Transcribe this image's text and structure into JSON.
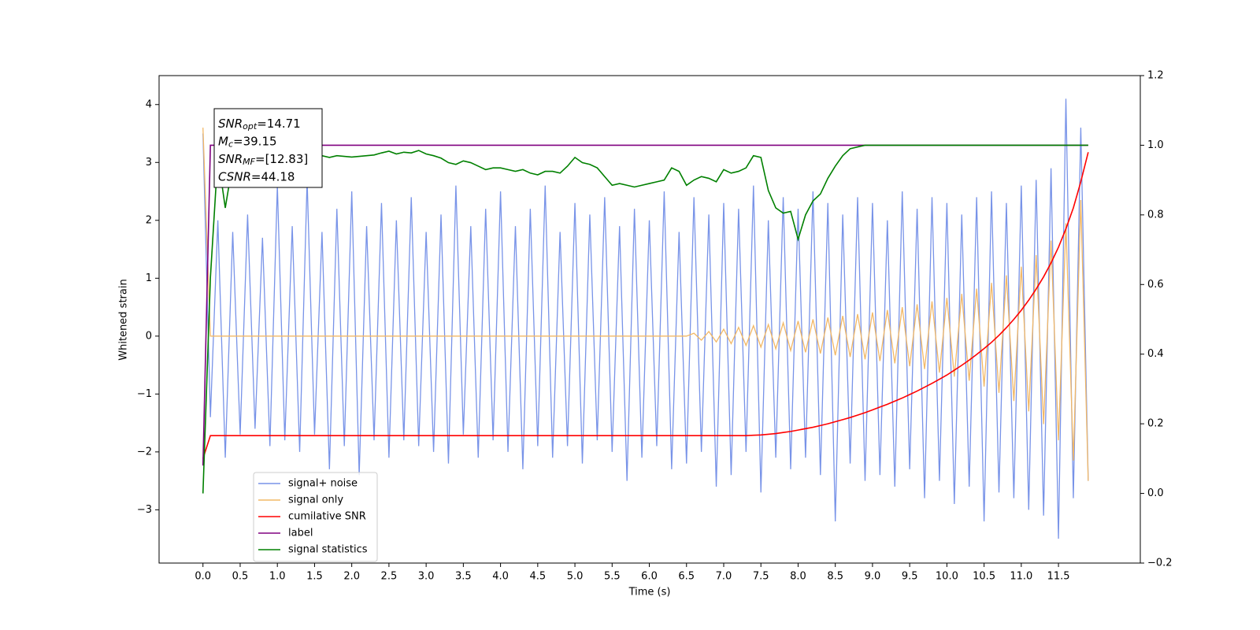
{
  "chart_data": {
    "type": "line",
    "x_label": "Time (s)",
    "y_label": "Whitened strain",
    "x": [
      0,
      0.1,
      0.2,
      0.3,
      0.4,
      0.5,
      0.6,
      0.7,
      0.8,
      0.9,
      1,
      1.1,
      1.2,
      1.3,
      1.4,
      1.5,
      1.6,
      1.7,
      1.8,
      1.9,
      2,
      2.1,
      2.2,
      2.3,
      2.4,
      2.5,
      2.6,
      2.7,
      2.8,
      2.9,
      3,
      3.1,
      3.2,
      3.3,
      3.4,
      3.5,
      3.6,
      3.7,
      3.8,
      3.9,
      4,
      4.1,
      4.2,
      4.3,
      4.4,
      4.5,
      4.6,
      4.7,
      4.8,
      4.9,
      5,
      5.1,
      5.2,
      5.3,
      5.4,
      5.5,
      5.6,
      5.7,
      5.8,
      5.9,
      6,
      6.1,
      6.2,
      6.3,
      6.4,
      6.5,
      6.6,
      6.7,
      6.8,
      6.9,
      7,
      7.1,
      7.2,
      7.3,
      7.4,
      7.5,
      7.6,
      7.7,
      7.8,
      7.9,
      8,
      8.1,
      8.2,
      8.3,
      8.4,
      8.5,
      8.6,
      8.7,
      8.8,
      8.9,
      9,
      9.1,
      9.2,
      9.3,
      9.4,
      9.5,
      9.6,
      9.7,
      9.8,
      9.9,
      10,
      10.1,
      10.2,
      10.3,
      10.4,
      10.5,
      10.6,
      10.7,
      10.8,
      10.9,
      11,
      11.1,
      11.2,
      11.3,
      11.4,
      11.5,
      11.6,
      11.7,
      11.8,
      11.9
    ],
    "series": [
      {
        "name": "signal+ noise",
        "color": "#7893e8",
        "values": [
          3.5,
          -1.4,
          2.0,
          -2.1,
          1.8,
          -1.7,
          2.1,
          -1.6,
          1.7,
          -1.9,
          2.6,
          -1.8,
          1.9,
          -2.0,
          2.7,
          -1.7,
          1.8,
          -2.3,
          2.2,
          -1.9,
          2.5,
          -2.4,
          1.9,
          -1.8,
          2.3,
          -2.1,
          2.0,
          -1.8,
          2.4,
          -1.9,
          1.8,
          -2.0,
          2.1,
          -2.2,
          2.6,
          -1.7,
          1.9,
          -2.1,
          2.2,
          -1.8,
          2.5,
          -2.0,
          1.9,
          -2.3,
          2.2,
          -1.9,
          2.6,
          -2.1,
          1.8,
          -1.9,
          2.3,
          -2.2,
          2.1,
          -1.8,
          2.4,
          -2.0,
          1.9,
          -2.5,
          2.2,
          -2.1,
          2.0,
          -1.9,
          2.5,
          -2.3,
          1.8,
          -2.2,
          2.4,
          -2.0,
          2.1,
          -2.6,
          2.3,
          -2.4,
          2.2,
          -2.0,
          2.6,
          -2.7,
          2.0,
          -2.1,
          2.4,
          -2.3,
          2.2,
          -2.1,
          2.5,
          -2.4,
          2.3,
          -3.2,
          2.1,
          -2.2,
          2.4,
          -2.5,
          2.3,
          -2.4,
          2.0,
          -2.6,
          2.5,
          -2.3,
          2.2,
          -2.8,
          2.4,
          -2.5,
          2.3,
          -2.9,
          2.1,
          -2.6,
          2.4,
          -3.2,
          2.5,
          -2.7,
          2.3,
          -2.8,
          2.6,
          -3.0,
          2.7,
          -3.1,
          2.9,
          -3.5,
          4.1,
          -2.8,
          3.6,
          -2.5
        ]
      },
      {
        "name": "signal only",
        "color": "#f2b866",
        "values": [
          3.6,
          0,
          0,
          0,
          0,
          0,
          0,
          0,
          0,
          0,
          0,
          0,
          0,
          0,
          0,
          0,
          0,
          0,
          0,
          0,
          0,
          0,
          0,
          0,
          0,
          0,
          0,
          0,
          0,
          0,
          0,
          0,
          0,
          0,
          0,
          0,
          0,
          0,
          0,
          0,
          0,
          0,
          0,
          0,
          0,
          0,
          0,
          0,
          0,
          0,
          0,
          0,
          0,
          0,
          0,
          0,
          0,
          0,
          0,
          0,
          0,
          0,
          0,
          0,
          0,
          0,
          0.05,
          -0.07,
          0.08,
          -0.1,
          0.12,
          -0.13,
          0.15,
          -0.16,
          0.18,
          -0.19,
          0.2,
          -0.22,
          0.23,
          -0.25,
          0.26,
          -0.28,
          0.29,
          -0.3,
          0.32,
          -0.33,
          0.35,
          -0.36,
          0.38,
          -0.4,
          0.41,
          -0.43,
          0.45,
          -0.47,
          0.5,
          -0.52,
          0.55,
          -0.57,
          0.6,
          -0.63,
          0.66,
          -0.7,
          0.73,
          -0.77,
          0.82,
          -0.87,
          0.92,
          -0.98,
          1.05,
          -1.12,
          1.2,
          -1.3,
          1.4,
          -1.52,
          1.65,
          -1.8,
          1.95,
          -2.15,
          2.35,
          -2.5
        ]
      },
      {
        "name": "cumilative SNR",
        "color": "#ff0000",
        "axis": "y2",
        "values": [
          0.1,
          0.166,
          0.166,
          0.166,
          0.166,
          0.166,
          0.166,
          0.166,
          0.166,
          0.166,
          0.166,
          0.166,
          0.166,
          0.166,
          0.166,
          0.166,
          0.166,
          0.166,
          0.166,
          0.166,
          0.166,
          0.166,
          0.166,
          0.166,
          0.166,
          0.166,
          0.166,
          0.166,
          0.166,
          0.166,
          0.166,
          0.166,
          0.166,
          0.166,
          0.166,
          0.166,
          0.166,
          0.166,
          0.166,
          0.166,
          0.166,
          0.166,
          0.166,
          0.166,
          0.166,
          0.166,
          0.166,
          0.166,
          0.166,
          0.166,
          0.166,
          0.166,
          0.166,
          0.166,
          0.166,
          0.166,
          0.166,
          0.166,
          0.166,
          0.166,
          0.166,
          0.166,
          0.166,
          0.166,
          0.166,
          0.166,
          0.166,
          0.166,
          0.166,
          0.166,
          0.166,
          0.166,
          0.166,
          0.166,
          0.167,
          0.168,
          0.17,
          0.172,
          0.175,
          0.178,
          0.182,
          0.186,
          0.19,
          0.195,
          0.2,
          0.206,
          0.212,
          0.218,
          0.225,
          0.232,
          0.24,
          0.248,
          0.256,
          0.265,
          0.274,
          0.284,
          0.294,
          0.305,
          0.316,
          0.328,
          0.34,
          0.354,
          0.368,
          0.383,
          0.399,
          0.416,
          0.434,
          0.454,
          0.476,
          0.5,
          0.526,
          0.555,
          0.587,
          0.622,
          0.662,
          0.707,
          0.76,
          0.82,
          0.895,
          0.98
        ]
      },
      {
        "name": "label",
        "color": "#800080",
        "axis": "y2",
        "values": [
          0.08,
          1,
          1,
          1,
          1,
          1,
          1,
          1,
          1,
          1,
          1,
          1,
          1,
          1,
          1,
          1,
          1,
          1,
          1,
          1,
          1,
          1,
          1,
          1,
          1,
          1,
          1,
          1,
          1,
          1,
          1,
          1,
          1,
          1,
          1,
          1,
          1,
          1,
          1,
          1,
          1,
          1,
          1,
          1,
          1,
          1,
          1,
          1,
          1,
          1,
          1,
          1,
          1,
          1,
          1,
          1,
          1,
          1,
          1,
          1,
          1,
          1,
          1,
          1,
          1,
          1,
          1,
          1,
          1,
          1,
          1,
          1,
          1,
          1,
          1,
          1,
          1,
          1,
          1,
          1,
          1,
          1,
          1,
          1,
          1,
          1,
          1,
          1,
          1,
          1,
          1,
          1,
          1,
          1,
          1,
          1,
          1,
          1,
          1,
          1,
          1,
          1,
          1,
          1,
          1,
          1,
          1,
          1,
          1,
          1,
          1,
          1,
          1,
          1,
          1,
          1,
          1,
          1,
          1,
          1
        ]
      },
      {
        "name": "signal statistics",
        "color": "#008000",
        "axis": "y2",
        "values": [
          0.0,
          0.62,
          0.97,
          0.82,
          0.95,
          0.94,
          0.96,
          0.95,
          0.93,
          0.94,
          0.95,
          0.96,
          0.95,
          0.94,
          0.95,
          0.96,
          0.97,
          0.965,
          0.97,
          0.968,
          0.966,
          0.968,
          0.97,
          0.972,
          0.978,
          0.983,
          0.975,
          0.98,
          0.978,
          0.985,
          0.975,
          0.97,
          0.963,
          0.95,
          0.945,
          0.955,
          0.95,
          0.94,
          0.93,
          0.935,
          0.935,
          0.93,
          0.925,
          0.93,
          0.92,
          0.915,
          0.925,
          0.925,
          0.92,
          0.94,
          0.965,
          0.95,
          0.945,
          0.935,
          0.91,
          0.885,
          0.89,
          0.885,
          0.88,
          0.885,
          0.89,
          0.895,
          0.9,
          0.935,
          0.925,
          0.885,
          0.9,
          0.91,
          0.905,
          0.895,
          0.93,
          0.92,
          0.925,
          0.935,
          0.97,
          0.965,
          0.87,
          0.82,
          0.805,
          0.81,
          0.73,
          0.8,
          0.84,
          0.86,
          0.905,
          0.94,
          0.97,
          0.99,
          0.995,
          1.0,
          1,
          1,
          1,
          1,
          1,
          1,
          1,
          1,
          1,
          1,
          1,
          1,
          1,
          1,
          1,
          1,
          1,
          1,
          1,
          1,
          1,
          1,
          1,
          1,
          1,
          1,
          1,
          1,
          1,
          1
        ]
      }
    ],
    "xlim": [
      -0.59,
      12.6
    ],
    "xticks": [
      {
        "value": 0,
        "label": "0.0"
      },
      0.5,
      {
        "value": 1,
        "label": "1.0"
      },
      1.5,
      {
        "value": 2,
        "label": "2.0"
      },
      2.5,
      {
        "value": 3,
        "label": "3.0"
      },
      3.5,
      {
        "value": 4,
        "label": "4.0"
      },
      4.5,
      {
        "value": 5,
        "label": "5.0"
      },
      5.5,
      {
        "value": 6,
        "label": "6.0"
      },
      6.5,
      {
        "value": 7,
        "label": "7.0"
      },
      7.5,
      {
        "value": 8,
        "label": "8.0"
      },
      8.5,
      {
        "value": 9,
        "label": "9.0"
      },
      9.5,
      {
        "value": 10,
        "label": "10.0"
      },
      10.5,
      {
        "value": 11,
        "label": "11.0"
      },
      11.5
    ],
    "ylim": [
      -3.92,
      4.5
    ],
    "yticks": [
      {
        "value": -3,
        "label": "−3"
      },
      {
        "value": -2,
        "label": "−2"
      },
      {
        "value": -1,
        "label": "−1"
      },
      0,
      1,
      2,
      3,
      4
    ],
    "y2lim": [
      -0.2,
      1.2
    ],
    "y2ticks": [
      {
        "value": -0.2,
        "label": "−0.2"
      },
      {
        "value": 0,
        "label": "0.0"
      },
      0.2,
      0.4,
      0.6,
      0.8,
      {
        "value": 1,
        "label": "1.0"
      },
      1.2
    ],
    "grid": false,
    "legend": "lower left",
    "annotations": [
      {
        "symbol": "SNR",
        "subscript": "opt",
        "text": "=14.71"
      },
      {
        "symbol": "M",
        "subscript": "c",
        "text": "=39.15"
      },
      {
        "symbol": "SNR",
        "subscript": "MF",
        "text": "=[12.83]"
      },
      {
        "symbol": "CSNR",
        "text": "=44.18"
      }
    ]
  }
}
